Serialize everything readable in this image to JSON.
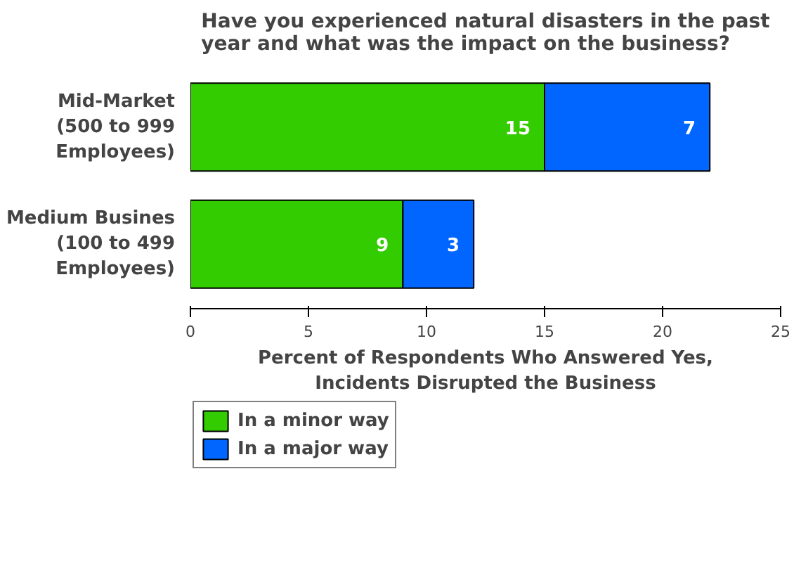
{
  "chart_data": {
    "type": "bar",
    "orientation": "horizontal",
    "stacked": true,
    "title": "Have you experienced natural disasters in the past\nyear and what was the impact on the business?",
    "categories": [
      "Mid-Market\n(500 to 999\nEmployees)",
      "Medium Busines\n(100 to 499\nEmployees)"
    ],
    "series": [
      {
        "name": "In a minor way",
        "color": "#33cc00",
        "values": [
          15,
          9
        ]
      },
      {
        "name": "In a major way",
        "color": "#0066ff",
        "values": [
          7,
          3
        ]
      }
    ],
    "xlabel": "Percent of Respondents Who Answered Yes,\nIncidents Disrupted the Business",
    "xlim": [
      0,
      25
    ],
    "xticks": [
      0,
      5,
      10,
      15,
      20,
      25
    ],
    "grid": false,
    "legend": "bottom",
    "data_labels": true
  }
}
